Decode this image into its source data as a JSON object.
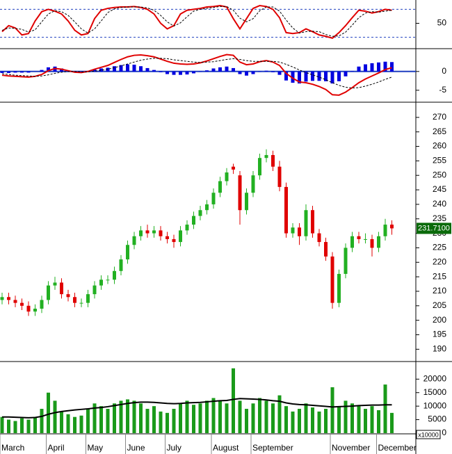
{
  "chart_data": [
    {
      "type": "indicator",
      "ylim": [
        0,
        100
      ],
      "yticks": [
        50
      ],
      "levels": [
        80,
        20
      ],
      "level_color": "#1f3fbf",
      "series": [
        {
          "style": "line",
          "color": "#e00000",
          "values": [
            32,
            45,
            40,
            25,
            28,
            55,
            75,
            80,
            76,
            70,
            55,
            35,
            25,
            28,
            60,
            78,
            82,
            84,
            85,
            85,
            86,
            84,
            80,
            70,
            50,
            38,
            45,
            70,
            78,
            80,
            82,
            85,
            86,
            88,
            85,
            60,
            38,
            60,
            82,
            88,
            86,
            80,
            62,
            30,
            28,
            30,
            38,
            32,
            25,
            22,
            18,
            30,
            45,
            62,
            78,
            76,
            72,
            75,
            80,
            78
          ]
        },
        {
          "style": "dashed",
          "color": "#000000",
          "values": [
            35,
            40,
            39,
            37,
            31,
            36,
            53,
            70,
            77,
            75,
            67,
            53,
            38,
            29,
            38,
            55,
            73,
            81,
            84,
            85,
            85,
            85,
            83,
            78,
            67,
            53,
            44,
            51,
            64,
            76,
            80,
            82,
            84,
            86,
            86,
            78,
            61,
            53,
            60,
            77,
            85,
            85,
            76,
            57,
            40,
            29,
            32,
            33,
            32,
            26,
            22,
            23,
            31,
            46,
            62,
            72,
            75,
            74,
            76,
            78
          ]
        }
      ]
    },
    {
      "type": "indicator",
      "ylim": [
        -8,
        5.7
      ],
      "yticks": [
        0,
        -5
      ],
      "levels": [
        0
      ],
      "level_color": "#1f3fbf",
      "series": [
        {
          "style": "bar",
          "color": "#0000e0",
          "values": [
            -0.4,
            -0.4,
            -0.3,
            -0.3,
            -0.3,
            0,
            0.4,
            1.1,
            1.3,
            0.8,
            0.2,
            -0.2,
            -0.2,
            0.1,
            0.5,
            0.8,
            1.0,
            1.4,
            1.7,
            1.9,
            1.8,
            1.4,
            0.9,
            0.4,
            -0.2,
            -0.7,
            -0.9,
            -0.9,
            -0.8,
            -0.5,
            -0.1,
            0.3,
            0.8,
            1.1,
            1.3,
            0.9,
            -0.7,
            -1.1,
            -0.7,
            -0.1,
            0.2,
            -0.2,
            -0.9,
            -2.4,
            -3.0,
            -3.2,
            -2.7,
            -2.5,
            -2.5,
            -2.6,
            -3.2,
            -2.6,
            -1.3,
            0.1,
            1.3,
            1.9,
            2.2,
            2.4,
            2.6,
            2.5
          ]
        },
        {
          "style": "line",
          "color": "#e00000",
          "values": [
            -1,
            -1.2,
            -1.3,
            -1.4,
            -1.5,
            -1.3,
            -0.8,
            0.2,
            0.8,
            0.6,
            0.2,
            -0.2,
            -0.3,
            0,
            0.6,
            1.1,
            1.6,
            2.4,
            3.2,
            3.9,
            4.3,
            4.4,
            4.2,
            3.9,
            3.3,
            2.7,
            2.2,
            2.0,
            1.9,
            2.0,
            2.3,
            2.8,
            3.4,
            4.0,
            4.5,
            4.3,
            2.5,
            1.8,
            2.0,
            2.6,
            2.9,
            2.5,
            1.6,
            -0.5,
            -1.8,
            -2.8,
            -3.0,
            -3.4,
            -4.0,
            -4.8,
            -6.2,
            -6.3,
            -5.5,
            -4.3,
            -3.0,
            -2.0,
            -1.2,
            -0.4,
            0.5,
            1.0
          ]
        },
        {
          "style": "dashed",
          "color": "#000000",
          "values": [
            -0.6,
            -0.8,
            -1.0,
            -1.1,
            -1.2,
            -1.3,
            -1.2,
            -0.9,
            -0.5,
            -0.2,
            0,
            0,
            -0.1,
            -0.1,
            0.1,
            0.3,
            0.6,
            1.0,
            1.5,
            2.0,
            2.5,
            3.0,
            3.3,
            3.5,
            3.5,
            3.4,
            3.1,
            2.9,
            2.7,
            2.5,
            2.4,
            2.5,
            2.6,
            2.9,
            3.2,
            3.4,
            3.2,
            2.9,
            2.7,
            2.7,
            2.7,
            2.7,
            2.5,
            1.9,
            1.2,
            0.4,
            -0.3,
            -0.9,
            -1.5,
            -2.2,
            -3.0,
            -3.7,
            -4.2,
            -4.4,
            -4.3,
            -3.9,
            -3.4,
            -2.8,
            -2.1,
            -1.5
          ]
        }
      ]
    },
    {
      "type": "candlestick",
      "ylim": [
        186,
        275
      ],
      "yticks": [
        190,
        195,
        200,
        205,
        210,
        215,
        220,
        225,
        230,
        235,
        240,
        245,
        250,
        255,
        260,
        265,
        270
      ],
      "up_color": "#22b022",
      "down_color": "#e00000",
      "last_label": "231.7100",
      "last_label_color": "#0a6a0a",
      "open": [
        207,
        208,
        207,
        206,
        205,
        203,
        204,
        207,
        212,
        213,
        209,
        208,
        206,
        206,
        209,
        212,
        214,
        214,
        217,
        221,
        226,
        229,
        231,
        230,
        231,
        229,
        228,
        227,
        231,
        233,
        236,
        238,
        240,
        244,
        248,
        253,
        250,
        238,
        244,
        250,
        256,
        257,
        253,
        246,
        230,
        232,
        229,
        238,
        230,
        227,
        222,
        206,
        216,
        225,
        229,
        228,
        228,
        225,
        229,
        233
      ],
      "high": [
        209.5,
        209.5,
        208.5,
        207.5,
        206.5,
        205.5,
        208.5,
        213.5,
        215,
        214.5,
        210.5,
        209.5,
        207.5,
        210.5,
        213.5,
        215.5,
        215.5,
        218.5,
        222.5,
        227.5,
        230.5,
        232.5,
        233,
        232.5,
        232.5,
        230.5,
        229.5,
        232.5,
        234.5,
        237.5,
        239.5,
        241.5,
        245.5,
        249.5,
        252.5,
        254,
        251.5,
        245.5,
        251.5,
        257.5,
        259,
        258.5,
        255,
        247.5,
        233.5,
        233.5,
        240,
        239.5,
        231.5,
        228.5,
        223.5,
        217.5,
        226.5,
        230.5,
        230.5,
        230,
        229.5,
        230.5,
        235,
        234.5
      ],
      "low": [
        205.5,
        205.5,
        204.5,
        203.5,
        201.5,
        201.5,
        202.5,
        205.5,
        210.5,
        207.5,
        206.5,
        204.5,
        204.5,
        204.5,
        207.5,
        210.5,
        212.5,
        212.5,
        215.5,
        219.5,
        224.5,
        227.5,
        228.5,
        228.5,
        227.5,
        226.5,
        225,
        225.5,
        229.5,
        231.5,
        234.5,
        236.5,
        238.5,
        242.5,
        246.5,
        250.5,
        233,
        236.5,
        242.5,
        248.5,
        254.5,
        251.5,
        244.5,
        228.5,
        228.5,
        226,
        227.5,
        228.5,
        225.5,
        220.5,
        204,
        204.5,
        214.5,
        223.5,
        226.5,
        226.5,
        222,
        223.5,
        227.5,
        229.5
      ],
      "close": [
        208,
        207,
        206,
        205,
        203,
        204,
        207,
        212,
        213,
        209,
        208,
        206,
        206,
        209,
        212,
        214,
        214,
        217,
        221,
        226,
        229,
        231,
        230,
        231,
        229,
        228,
        227,
        231,
        233,
        236,
        238,
        240,
        244,
        248,
        251,
        252,
        238,
        244,
        250,
        256,
        257,
        253,
        246,
        230,
        232,
        229,
        238,
        230,
        227,
        222,
        206,
        216,
        225,
        229,
        228,
        228,
        225,
        229,
        233,
        231.71
      ]
    },
    {
      "type": "indicator",
      "ylim": [
        0,
        26000
      ],
      "yticks": [
        0,
        5000,
        10000,
        15000,
        20000
      ],
      "unit_label": "x10000",
      "series": [
        {
          "style": "bar",
          "color": "#1a9a1a",
          "values": [
            6000,
            5000,
            4500,
            5500,
            5000,
            6000,
            9000,
            15000,
            12000,
            8000,
            7000,
            6000,
            6500,
            9000,
            11000,
            10000,
            9000,
            11000,
            12000,
            12500,
            12000,
            11000,
            9000,
            10000,
            8000,
            7500,
            9000,
            11000,
            12000,
            10500,
            11000,
            12000,
            13000,
            12000,
            11000,
            24000,
            12000,
            9000,
            11000,
            13000,
            12000,
            11000,
            14000,
            10000,
            8000,
            9000,
            11000,
            9500,
            8000,
            9000,
            17000,
            10000,
            12000,
            11000,
            10000,
            9000,
            10000,
            8500,
            18000,
            7500
          ]
        },
        {
          "style": "line",
          "color": "#000000",
          "values": [
            6000,
            6000,
            5900,
            5800,
            5700,
            5800,
            6200,
            7000,
            7600,
            8000,
            8300,
            8600,
            8800,
            9000,
            9300,
            9500,
            9800,
            10200,
            10600,
            11000,
            11300,
            11500,
            11500,
            11400,
            11200,
            11000,
            10900,
            11000,
            11200,
            11300,
            11400,
            11600,
            11800,
            12000,
            12100,
            12500,
            12800,
            12700,
            12600,
            12500,
            12300,
            12000,
            11800,
            11200,
            10800,
            10600,
            10500,
            10300,
            10100,
            9900,
            9700,
            9800,
            9900,
            10000,
            10200,
            10300,
            10400,
            10400,
            10500,
            10500
          ]
        }
      ],
      "month_labels": [
        {
          "label": "March",
          "bar": 0
        },
        {
          "label": "April",
          "bar": 7
        },
        {
          "label": "May",
          "bar": 13
        },
        {
          "label": "June",
          "bar": 19
        },
        {
          "label": "July",
          "bar": 25
        },
        {
          "label": "August",
          "bar": 32
        },
        {
          "label": "September",
          "bar": 38
        },
        {
          "label": "November",
          "bar": 50
        },
        {
          "label": "December",
          "bar": 57
        }
      ]
    }
  ]
}
